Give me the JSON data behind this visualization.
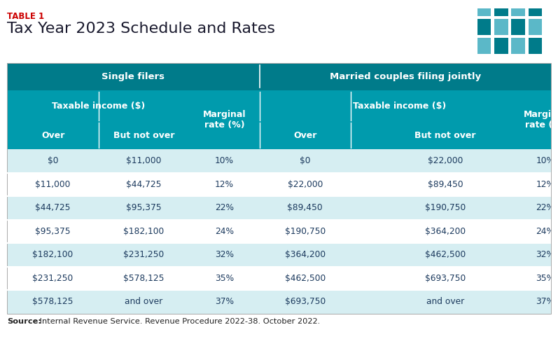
{
  "table_label": "TABLE 1",
  "title": "Tax Year 2023 Schedule and Rates",
  "source_bold": "Source:",
  "source_rest": " Internal Revenue Service. Revenue Procedure 2022-38. October 2022.",
  "header1_text": "Single filers",
  "header2_text": "Married couples filing jointly",
  "rows": [
    [
      "$0",
      "$11,000",
      "10%",
      "$0",
      "$22,000",
      "10%"
    ],
    [
      "$11,000",
      "$44,725",
      "12%",
      "$22,000",
      "$89,450",
      "12%"
    ],
    [
      "$44,725",
      "$95,375",
      "22%",
      "$89,450",
      "$190,750",
      "22%"
    ],
    [
      "$95,375",
      "$182,100",
      "24%",
      "$190,750",
      "$364,200",
      "24%"
    ],
    [
      "$182,100",
      "$231,250",
      "32%",
      "$364,200",
      "$462,500",
      "32%"
    ],
    [
      "$231,250",
      "$578,125",
      "35%",
      "$462,500",
      "$693,750",
      "35%"
    ],
    [
      "$578,125",
      "and over",
      "37%",
      "$693,750",
      "and over",
      "37%"
    ]
  ],
  "color_header_dark": "#007B8A",
  "color_header_medium": "#009BAD",
  "color_row_light": "#D6EEF2",
  "color_row_white": "#FFFFFF",
  "color_text_header": "#FFFFFF",
  "color_text_body": "#1C3A5E",
  "color_label_red": "#CC0000",
  "color_title": "#1a1a2e",
  "tpc_grid_light": "#5BB8C8",
  "tpc_grid_dark": "#007B8A",
  "tpc_bg": "#1C3A5E",
  "fig_width": 7.97,
  "fig_height": 4.84,
  "dpi": 100
}
